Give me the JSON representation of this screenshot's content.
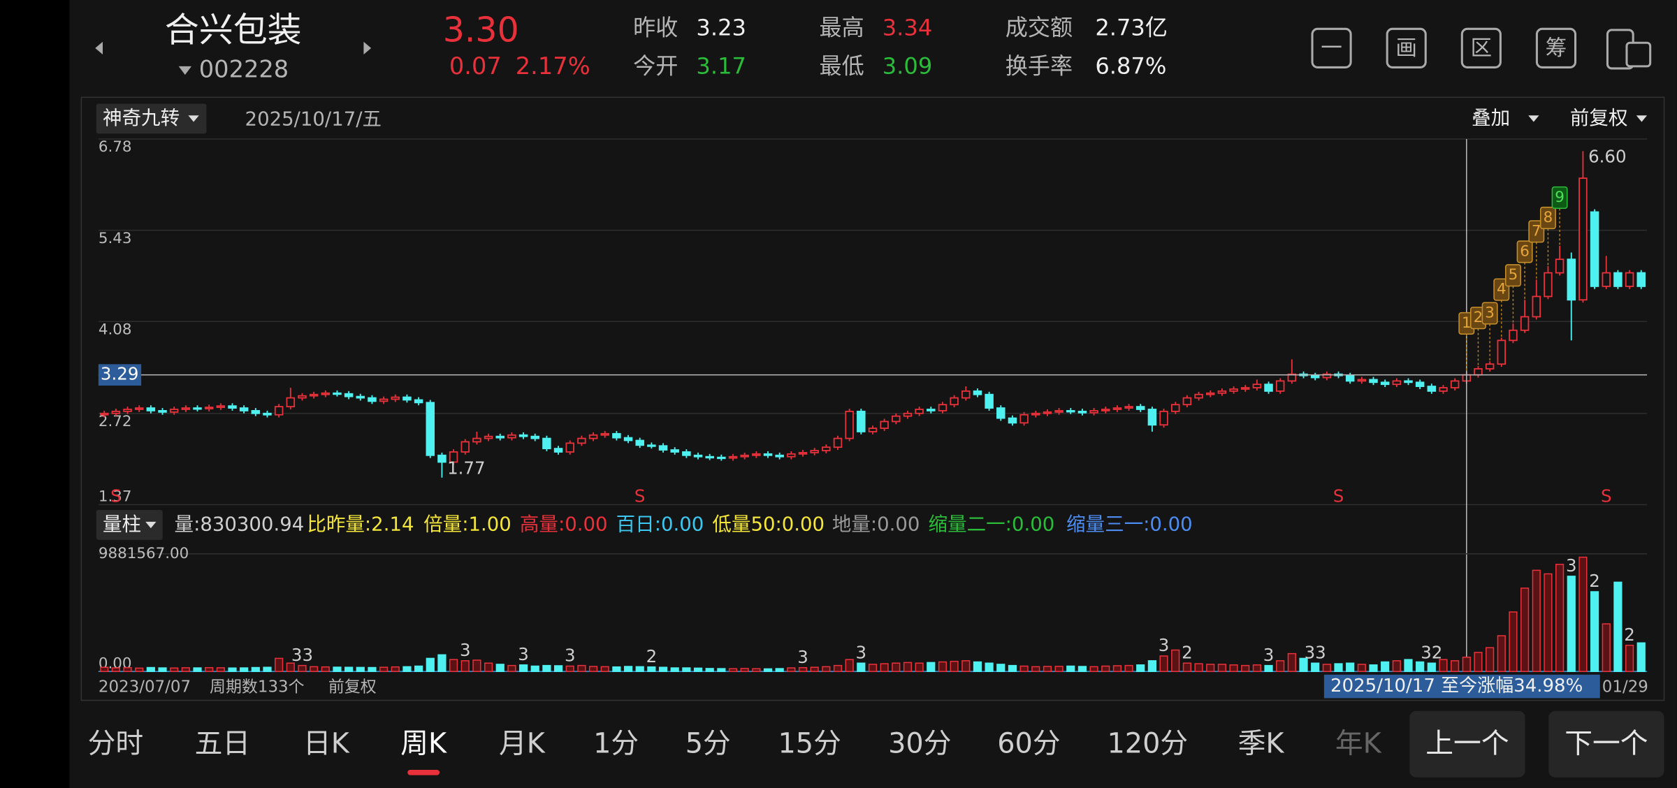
{
  "header": {
    "name": "合兴包装",
    "code": "002228",
    "price": "3.30",
    "change": "0.07",
    "change_pct": "2.17%",
    "stats": [
      {
        "label": "昨收",
        "value": "3.23"
      },
      {
        "label": "今开",
        "value": "3.17"
      },
      {
        "label": "最高",
        "value": "3.34"
      },
      {
        "label": "最低",
        "value": "3.09"
      },
      {
        "label": "成交额",
        "value": "2.73亿"
      },
      {
        "label": "换手率",
        "value": "6.87%"
      }
    ],
    "tools": [
      "一",
      "画",
      "区",
      "筹"
    ]
  },
  "chart_toolbar": {
    "indicator": "神奇九转",
    "date": "2025/10/17/五",
    "overlay": "叠加",
    "adjust": "前复权"
  },
  "volume_toolbar": {
    "indicator": "量柱",
    "stats": [
      "量:830300.94",
      "比昨量:2.14",
      "倍量:1.00",
      "高量:0.00",
      "百日:0.00",
      "低量50:0.00",
      "地量:0.00",
      "缩量二一:0.00",
      "缩量三一:0.00"
    ]
  },
  "footer": {
    "start_date": "2023/07/07",
    "periods": "周期数133个",
    "adjust": "前复权",
    "range_gain": "2025/10/17 至今涨幅34.98%",
    "end_date": "01/29"
  },
  "tabs": [
    "分时",
    "五日",
    "日K",
    "周K",
    "月K",
    "1分",
    "5分",
    "15分",
    "30分",
    "60分",
    "120分",
    "季K",
    "年K"
  ],
  "active_tab": 3,
  "buttons": [
    "上一个",
    "下一个"
  ],
  "chart_data": [
    {
      "type": "candlestick",
      "up_color": "#e8313a",
      "down_color": "#4ff0f0",
      "ylim": [
        1.37,
        6.78
      ],
      "yticks": [
        6.78,
        5.43,
        4.08,
        2.72,
        1.37
      ],
      "grid": true,
      "open": [
        2.7,
        2.72,
        2.75,
        2.78,
        2.8,
        2.76,
        2.74,
        2.78,
        2.8,
        2.79,
        2.81,
        2.83,
        2.8,
        2.76,
        2.72,
        2.7,
        2.82,
        2.95,
        2.98,
        3.0,
        3.02,
        3.01,
        2.97,
        2.95,
        2.9,
        2.93,
        2.96,
        2.92,
        2.88,
        2.1,
        2.0,
        2.15,
        2.3,
        2.35,
        2.38,
        2.36,
        2.4,
        2.38,
        2.35,
        2.2,
        2.15,
        2.28,
        2.35,
        2.4,
        2.42,
        2.36,
        2.32,
        2.25,
        2.24,
        2.18,
        2.15,
        2.1,
        2.08,
        2.07,
        2.06,
        2.08,
        2.1,
        2.12,
        2.1,
        2.08,
        2.12,
        2.14,
        2.17,
        2.22,
        2.35,
        2.75,
        2.45,
        2.5,
        2.6,
        2.68,
        2.72,
        2.78,
        2.76,
        2.85,
        2.95,
        3.05,
        3.0,
        2.8,
        2.65,
        2.58,
        2.7,
        2.72,
        2.74,
        2.76,
        2.75,
        2.73,
        2.76,
        2.78,
        2.8,
        2.82,
        2.78,
        2.55,
        2.75,
        2.85,
        2.95,
        3.0,
        3.02,
        3.05,
        3.08,
        3.1,
        3.15,
        3.05,
        3.2,
        3.3,
        3.28,
        3.25,
        3.3,
        3.28,
        3.2,
        3.22,
        3.18,
        3.15,
        3.2,
        3.18,
        3.12,
        3.05,
        3.1,
        3.2,
        3.29,
        3.38,
        3.45,
        3.8,
        3.95,
        4.15,
        4.45,
        4.8,
        5.0,
        4.4,
        5.7,
        4.6,
        4.8,
        4.6,
        4.8
      ],
      "high": [
        2.76,
        2.79,
        2.82,
        2.84,
        2.84,
        2.8,
        2.82,
        2.84,
        2.84,
        2.85,
        2.87,
        2.87,
        2.84,
        2.8,
        2.76,
        2.86,
        3.1,
        3.02,
        3.04,
        3.06,
        3.06,
        3.05,
        3.01,
        2.99,
        2.97,
        3.0,
        3.0,
        2.96,
        2.92,
        2.14,
        2.19,
        2.34,
        2.45,
        2.42,
        2.42,
        2.44,
        2.44,
        2.42,
        2.39,
        2.24,
        2.32,
        2.39,
        2.44,
        2.46,
        2.46,
        2.4,
        2.36,
        2.29,
        2.28,
        2.22,
        2.19,
        2.14,
        2.12,
        2.11,
        2.12,
        2.14,
        2.16,
        2.16,
        2.14,
        2.16,
        2.18,
        2.21,
        2.26,
        2.39,
        2.79,
        2.79,
        2.54,
        2.64,
        2.72,
        2.76,
        2.82,
        2.82,
        2.89,
        2.99,
        3.12,
        3.09,
        3.04,
        2.84,
        2.69,
        2.74,
        2.76,
        2.78,
        2.8,
        2.8,
        2.79,
        2.8,
        2.82,
        2.84,
        2.86,
        2.86,
        2.82,
        2.79,
        2.89,
        2.99,
        3.04,
        3.06,
        3.09,
        3.12,
        3.14,
        3.22,
        3.19,
        3.24,
        3.52,
        3.34,
        3.32,
        3.34,
        3.34,
        3.32,
        3.26,
        3.26,
        3.22,
        3.24,
        3.24,
        3.22,
        3.16,
        3.14,
        3.24,
        3.34,
        3.42,
        3.49,
        3.84,
        4.05,
        4.4,
        4.7,
        4.9,
        5.2,
        5.1,
        6.6,
        5.74,
        5.05,
        4.84,
        4.84,
        4.84
      ],
      "low": [
        2.66,
        2.68,
        2.71,
        2.74,
        2.72,
        2.7,
        2.7,
        2.74,
        2.75,
        2.75,
        2.77,
        2.76,
        2.72,
        2.68,
        2.66,
        2.66,
        2.78,
        2.91,
        2.94,
        2.96,
        2.97,
        2.93,
        2.91,
        2.86,
        2.86,
        2.89,
        2.88,
        2.84,
        2.06,
        1.77,
        1.96,
        2.11,
        2.26,
        2.31,
        2.32,
        2.32,
        2.34,
        2.31,
        2.16,
        2.11,
        2.11,
        2.24,
        2.31,
        2.36,
        2.32,
        2.28,
        2.21,
        2.2,
        2.14,
        2.11,
        2.06,
        2.04,
        2.03,
        2.02,
        2.02,
        2.04,
        2.06,
        2.06,
        2.04,
        2.04,
        2.08,
        2.1,
        2.13,
        2.18,
        2.31,
        2.41,
        2.41,
        2.46,
        2.56,
        2.64,
        2.68,
        2.72,
        2.72,
        2.81,
        2.91,
        2.96,
        2.76,
        2.61,
        2.54,
        2.54,
        2.66,
        2.68,
        2.7,
        2.71,
        2.69,
        2.69,
        2.72,
        2.74,
        2.76,
        2.74,
        2.45,
        2.51,
        2.71,
        2.81,
        2.91,
        2.96,
        2.98,
        3.01,
        3.04,
        3.06,
        3.01,
        3.01,
        3.16,
        3.24,
        3.21,
        3.21,
        3.24,
        3.16,
        3.16,
        3.14,
        3.11,
        3.11,
        3.14,
        3.08,
        3.01,
        3.01,
        3.06,
        3.16,
        3.25,
        3.34,
        3.41,
        3.76,
        3.91,
        4.11,
        4.41,
        4.76,
        3.8,
        4.36,
        4.56,
        4.56,
        4.56,
        4.56,
        4.56
      ],
      "close": [
        2.72,
        2.75,
        2.78,
        2.8,
        2.76,
        2.74,
        2.78,
        2.8,
        2.79,
        2.81,
        2.83,
        2.8,
        2.76,
        2.72,
        2.7,
        2.82,
        2.95,
        2.98,
        3.0,
        3.02,
        3.01,
        2.97,
        2.95,
        2.9,
        2.93,
        2.96,
        2.92,
        2.88,
        2.1,
        2.0,
        2.15,
        2.3,
        2.35,
        2.38,
        2.36,
        2.4,
        2.38,
        2.35,
        2.2,
        2.15,
        2.28,
        2.35,
        2.4,
        2.42,
        2.36,
        2.32,
        2.25,
        2.24,
        2.18,
        2.15,
        2.1,
        2.08,
        2.07,
        2.06,
        2.08,
        2.1,
        2.12,
        2.1,
        2.08,
        2.12,
        2.14,
        2.17,
        2.22,
        2.35,
        2.75,
        2.45,
        2.5,
        2.6,
        2.68,
        2.72,
        2.78,
        2.76,
        2.85,
        2.95,
        3.05,
        3.0,
        2.8,
        2.65,
        2.58,
        2.7,
        2.72,
        2.74,
        2.76,
        2.75,
        2.73,
        2.76,
        2.78,
        2.8,
        2.82,
        2.78,
        2.55,
        2.75,
        2.85,
        2.95,
        3.0,
        3.02,
        3.05,
        3.08,
        3.1,
        3.15,
        3.05,
        3.2,
        3.3,
        3.28,
        3.25,
        3.3,
        3.28,
        3.2,
        3.22,
        3.18,
        3.15,
        3.2,
        3.18,
        3.12,
        3.05,
        3.1,
        3.2,
        3.29,
        3.38,
        3.45,
        3.8,
        3.95,
        4.15,
        4.45,
        4.8,
        5.0,
        4.4,
        6.2,
        4.6,
        4.8,
        4.6,
        4.8,
        4.6
      ],
      "crosshair": {
        "index": 117,
        "value": 3.29
      },
      "annotations": [
        {
          "index": 127,
          "text": "6.60"
        },
        {
          "index": 29,
          "text": "1.77"
        }
      ],
      "signals": [
        {
          "index": 117,
          "label": "1"
        },
        {
          "index": 118,
          "label": "2"
        },
        {
          "index": 119,
          "label": "3"
        },
        {
          "index": 120,
          "label": "4"
        },
        {
          "index": 121,
          "label": "5"
        },
        {
          "index": 122,
          "label": "6"
        },
        {
          "index": 123,
          "label": "7"
        },
        {
          "index": 124,
          "label": "8"
        },
        {
          "index": 125,
          "label": "9"
        }
      ],
      "sell_marks": [
        {
          "index": 1,
          "label": "S"
        },
        {
          "index": 46,
          "label": "S"
        },
        {
          "index": 106,
          "label": "S"
        },
        {
          "index": 129,
          "label": "S"
        }
      ]
    },
    {
      "type": "bar",
      "ylim": [
        0,
        9881567
      ],
      "yticks": [
        {
          "value": 9881567,
          "label": "9881567.00"
        },
        {
          "value": 0,
          "label": "0.00"
        }
      ],
      "values": [
        350000,
        300000,
        320000,
        280000,
        330000,
        300000,
        290000,
        310000,
        300000,
        320000,
        310000,
        290000,
        300000,
        330000,
        350000,
        1100000,
        700000,
        500000,
        400000,
        380000,
        360000,
        350000,
        340000,
        330000,
        350000,
        380000,
        400000,
        450000,
        1100000,
        1400000,
        1000000,
        900000,
        950000,
        700000,
        600000,
        500000,
        550000,
        450000,
        500000,
        480000,
        450000,
        500000,
        420000,
        400000,
        380000,
        420000,
        400000,
        380000,
        350000,
        300000,
        300000,
        280000,
        250000,
        240000,
        230000,
        250000,
        230000,
        220000,
        240000,
        300000,
        320000,
        350000,
        400000,
        500000,
        1000000,
        700000,
        600000,
        650000,
        700000,
        750000,
        700000,
        750000,
        800000,
        850000,
        900000,
        800000,
        700000,
        600000,
        500000,
        450000,
        400000,
        420000,
        430000,
        450000,
        420000,
        400000,
        450000,
        480000,
        500000,
        550000,
        900000,
        1300000,
        1800000,
        700000,
        650000,
        600000,
        600000,
        550000,
        500000,
        550000,
        500000,
        900000,
        1500000,
        1100000,
        700000,
        600000,
        650000,
        700000,
        600000,
        550000,
        800000,
        900000,
        1000000,
        800000,
        700000,
        1000000,
        900000,
        1200000,
        1600000,
        2000000,
        3000000,
        5000000,
        7000000,
        8500000,
        8200000,
        9000000,
        8000000,
        9600000,
        6700000,
        4000000,
        7500000,
        2200000,
        2400000
      ],
      "markers": [
        {
          "index": 17,
          "label": "33"
        },
        {
          "index": 31,
          "label": "3"
        },
        {
          "index": 36,
          "label": "3"
        },
        {
          "index": 40,
          "label": "3"
        },
        {
          "index": 47,
          "label": "2"
        },
        {
          "index": 60,
          "label": "3"
        },
        {
          "index": 65,
          "label": "3"
        },
        {
          "index": 91,
          "label": "3"
        },
        {
          "index": 93,
          "label": "2"
        },
        {
          "index": 100,
          "label": "3"
        },
        {
          "index": 104,
          "label": "33"
        },
        {
          "index": 114,
          "label": "32"
        },
        {
          "index": 126,
          "label": "3"
        },
        {
          "index": 128,
          "label": "2"
        },
        {
          "index": 131,
          "label": "2"
        }
      ]
    }
  ]
}
